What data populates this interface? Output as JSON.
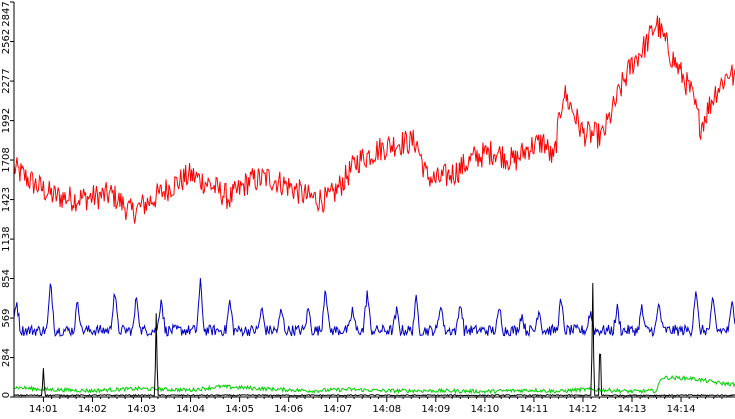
{
  "chart_data": {
    "type": "line",
    "title": "",
    "xlabel": "",
    "ylabel": "",
    "x_tick_labels": [
      "14:01",
      "14:02",
      "14:03",
      "14:04",
      "14:05",
      "14:06",
      "14:07",
      "14:08",
      "14:09",
      "14:10",
      "14:11",
      "14:12",
      "14:13",
      "14:14"
    ],
    "y_tick_labels": [
      "0",
      "284",
      "569",
      "854",
      "1138",
      "1423",
      "1708",
      "1992",
      "2277",
      "2562",
      "2847"
    ],
    "ylim": [
      0,
      2847
    ],
    "xlim_minutes": [
      0.4,
      15.1
    ],
    "grid": false,
    "legend": "none",
    "colors": {
      "red": "#ff0000",
      "blue": "#0000c0",
      "green": "#00d000",
      "black": "#000000",
      "axis": "#000000"
    },
    "series": [
      {
        "color_key": "red",
        "noise": 95,
        "points": [
          [
            0.4,
            1650
          ],
          [
            0.8,
            1540
          ],
          [
            1.2,
            1450
          ],
          [
            1.6,
            1430
          ],
          [
            2.0,
            1440
          ],
          [
            2.4,
            1460
          ],
          [
            2.8,
            1330
          ],
          [
            3.2,
            1420
          ],
          [
            3.6,
            1520
          ],
          [
            4.0,
            1600
          ],
          [
            4.4,
            1530
          ],
          [
            4.8,
            1430
          ],
          [
            5.2,
            1560
          ],
          [
            5.6,
            1580
          ],
          [
            6.0,
            1520
          ],
          [
            6.4,
            1440
          ],
          [
            6.8,
            1420
          ],
          [
            7.0,
            1500
          ],
          [
            7.4,
            1700
          ],
          [
            7.8,
            1780
          ],
          [
            8.2,
            1830
          ],
          [
            8.6,
            1840
          ],
          [
            8.8,
            1600
          ],
          [
            9.0,
            1560
          ],
          [
            9.4,
            1620
          ],
          [
            9.8,
            1730
          ],
          [
            10.2,
            1770
          ],
          [
            10.6,
            1700
          ],
          [
            10.9,
            1800
          ],
          [
            11.2,
            1840
          ],
          [
            11.4,
            1700
          ],
          [
            11.6,
            2200
          ],
          [
            11.8,
            2060
          ],
          [
            12.0,
            1900
          ],
          [
            12.4,
            1880
          ],
          [
            12.8,
            2250
          ],
          [
            13.0,
            2400
          ],
          [
            13.3,
            2550
          ],
          [
            13.5,
            2700
          ],
          [
            13.8,
            2460
          ],
          [
            14.2,
            2200
          ],
          [
            14.4,
            1950
          ],
          [
            14.7,
            2200
          ],
          [
            15.0,
            2350
          ],
          [
            15.1,
            2280
          ]
        ]
      },
      {
        "color_key": "blue",
        "noise": 40,
        "base": 480,
        "spikes": [
          [
            0.45,
            710
          ],
          [
            1.15,
            830
          ],
          [
            1.7,
            700
          ],
          [
            2.45,
            780
          ],
          [
            2.9,
            730
          ],
          [
            3.4,
            720
          ],
          [
            4.2,
            820
          ],
          [
            4.8,
            690
          ],
          [
            5.45,
            640
          ],
          [
            5.85,
            630
          ],
          [
            6.4,
            640
          ],
          [
            6.75,
            820
          ],
          [
            7.3,
            630
          ],
          [
            7.6,
            760
          ],
          [
            8.2,
            620
          ],
          [
            8.6,
            700
          ],
          [
            9.1,
            680
          ],
          [
            9.5,
            690
          ],
          [
            10.3,
            640
          ],
          [
            10.75,
            600
          ],
          [
            11.1,
            640
          ],
          [
            11.55,
            700
          ],
          [
            12.15,
            620
          ],
          [
            12.7,
            640
          ],
          [
            13.2,
            640
          ],
          [
            13.55,
            680
          ],
          [
            14.3,
            780
          ],
          [
            14.65,
            700
          ],
          [
            15.05,
            700
          ]
        ]
      },
      {
        "color_key": "green",
        "noise": 14,
        "points": [
          [
            0.4,
            70
          ],
          [
            1.0,
            55
          ],
          [
            1.5,
            50
          ],
          [
            2.0,
            45
          ],
          [
            2.5,
            55
          ],
          [
            3.0,
            60
          ],
          [
            3.5,
            55
          ],
          [
            4.0,
            50
          ],
          [
            4.6,
            75
          ],
          [
            5.2,
            65
          ],
          [
            5.8,
            55
          ],
          [
            6.5,
            45
          ],
          [
            7.2,
            55
          ],
          [
            8.0,
            45
          ],
          [
            9.0,
            45
          ],
          [
            10.0,
            40
          ],
          [
            11.0,
            50
          ],
          [
            11.5,
            40
          ],
          [
            12.0,
            55
          ],
          [
            12.5,
            50
          ],
          [
            13.0,
            40
          ],
          [
            13.5,
            45
          ],
          [
            13.6,
            140
          ],
          [
            14.2,
            135
          ],
          [
            14.8,
            100
          ],
          [
            15.1,
            90
          ]
        ]
      },
      {
        "color_key": "black",
        "noise": 5,
        "base": 12,
        "spikes": [
          [
            1.0,
            210
          ],
          [
            3.3,
            600
          ],
          [
            12.2,
            820
          ],
          [
            12.35,
            460
          ]
        ]
      }
    ]
  }
}
